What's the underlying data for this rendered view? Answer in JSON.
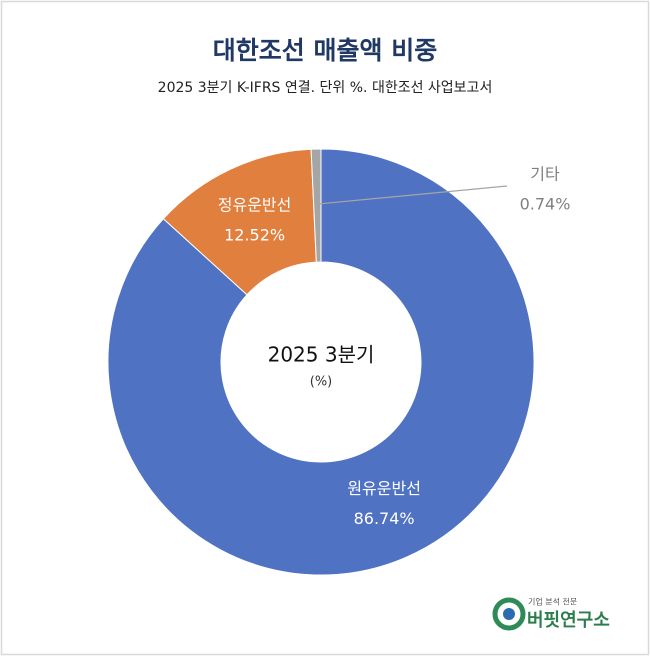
{
  "chart_data": {
    "type": "donut",
    "title": "대한조선 매출액 비중",
    "subtitle": "2025 3분기 K-IFRS 연결. 단위 %. 대한조선 사업보고서",
    "center_title": "2025 3분기",
    "center_subtitle": "(%)",
    "categories": [
      "원유운반선",
      "정유운반선",
      "기타"
    ],
    "values": [
      86.74,
      12.52,
      0.74
    ],
    "value_labels": [
      "86.74%",
      "12.52%",
      "0.74%"
    ],
    "colors": [
      "#4f72c3",
      "#e07f3e",
      "#a5a5a5"
    ]
  },
  "logo": {
    "tagline": "기업 분석 전문",
    "name": "버핏연구소"
  }
}
